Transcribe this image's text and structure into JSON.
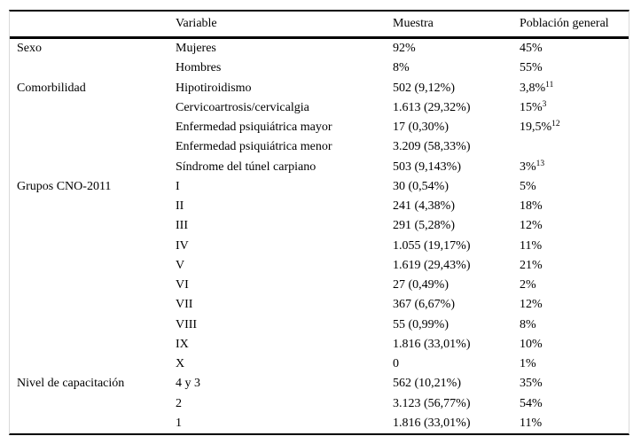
{
  "table": {
    "headers": {
      "col1": "",
      "col2": "Variable",
      "col3": "Muestra",
      "col4": "Población general"
    },
    "rows": [
      {
        "category": "Sexo",
        "variable": "Mujeres",
        "muestra": "92%",
        "poblacion": "45%",
        "sup": ""
      },
      {
        "category": "",
        "variable": "Hombres",
        "muestra": "8%",
        "poblacion": "55%",
        "sup": ""
      },
      {
        "category": "Comorbilidad",
        "variable": "Hipotiroidismo",
        "muestra": "502 (9,12%)",
        "poblacion": "3,8%",
        "sup": "11"
      },
      {
        "category": "",
        "variable": "Cervicoartrosis/cervicalgia",
        "muestra": "1.613 (29,32%)",
        "poblacion": "15%",
        "sup": "3"
      },
      {
        "category": "",
        "variable": "Enfermedad psiquiátrica mayor",
        "muestra": "17 (0,30%)",
        "poblacion": "19,5%",
        "sup": "12"
      },
      {
        "category": "",
        "variable": "Enfermedad psiquiátrica menor",
        "muestra": "3.209 (58,33%)",
        "poblacion": "",
        "sup": ""
      },
      {
        "category": "",
        "variable": "Síndrome del túnel carpiano",
        "muestra": "503 (9,143%)",
        "poblacion": "3%",
        "sup": "13"
      },
      {
        "category": "Grupos CNO-2011",
        "variable": "I",
        "muestra": "30 (0,54%)",
        "poblacion": "5%",
        "sup": ""
      },
      {
        "category": "",
        "variable": "II",
        "muestra": "241 (4,38%)",
        "poblacion": "18%",
        "sup": ""
      },
      {
        "category": "",
        "variable": "III",
        "muestra": "291 (5,28%)",
        "poblacion": "12%",
        "sup": ""
      },
      {
        "category": "",
        "variable": "IV",
        "muestra": "1.055 (19,17%)",
        "poblacion": "11%",
        "sup": ""
      },
      {
        "category": "",
        "variable": "V",
        "muestra": "1.619 (29,43%)",
        "poblacion": "21%",
        "sup": ""
      },
      {
        "category": "",
        "variable": "VI",
        "muestra": "27 (0,49%)",
        "poblacion": "2%",
        "sup": ""
      },
      {
        "category": "",
        "variable": "VII",
        "muestra": "367 (6,67%)",
        "poblacion": "12%",
        "sup": ""
      },
      {
        "category": "",
        "variable": "VIII",
        "muestra": "55 (0,99%)",
        "poblacion": "8%",
        "sup": ""
      },
      {
        "category": "",
        "variable": "IX",
        "muestra": "1.816 (33,01%)",
        "poblacion": "10%",
        "sup": ""
      },
      {
        "category": "",
        "variable": "X",
        "muestra": "0",
        "poblacion": "1%",
        "sup": ""
      },
      {
        "category": "Nivel de capacitación",
        "variable": "4 y 3",
        "muestra": "562 (10,21%)",
        "poblacion": "35%",
        "sup": ""
      },
      {
        "category": "",
        "variable": "2",
        "muestra": "3.123 (56,77%)",
        "poblacion": "54%",
        "sup": ""
      },
      {
        "category": "",
        "variable": "1",
        "muestra": "1.816 (33,01%)",
        "poblacion": "11%",
        "sup": ""
      }
    ]
  }
}
